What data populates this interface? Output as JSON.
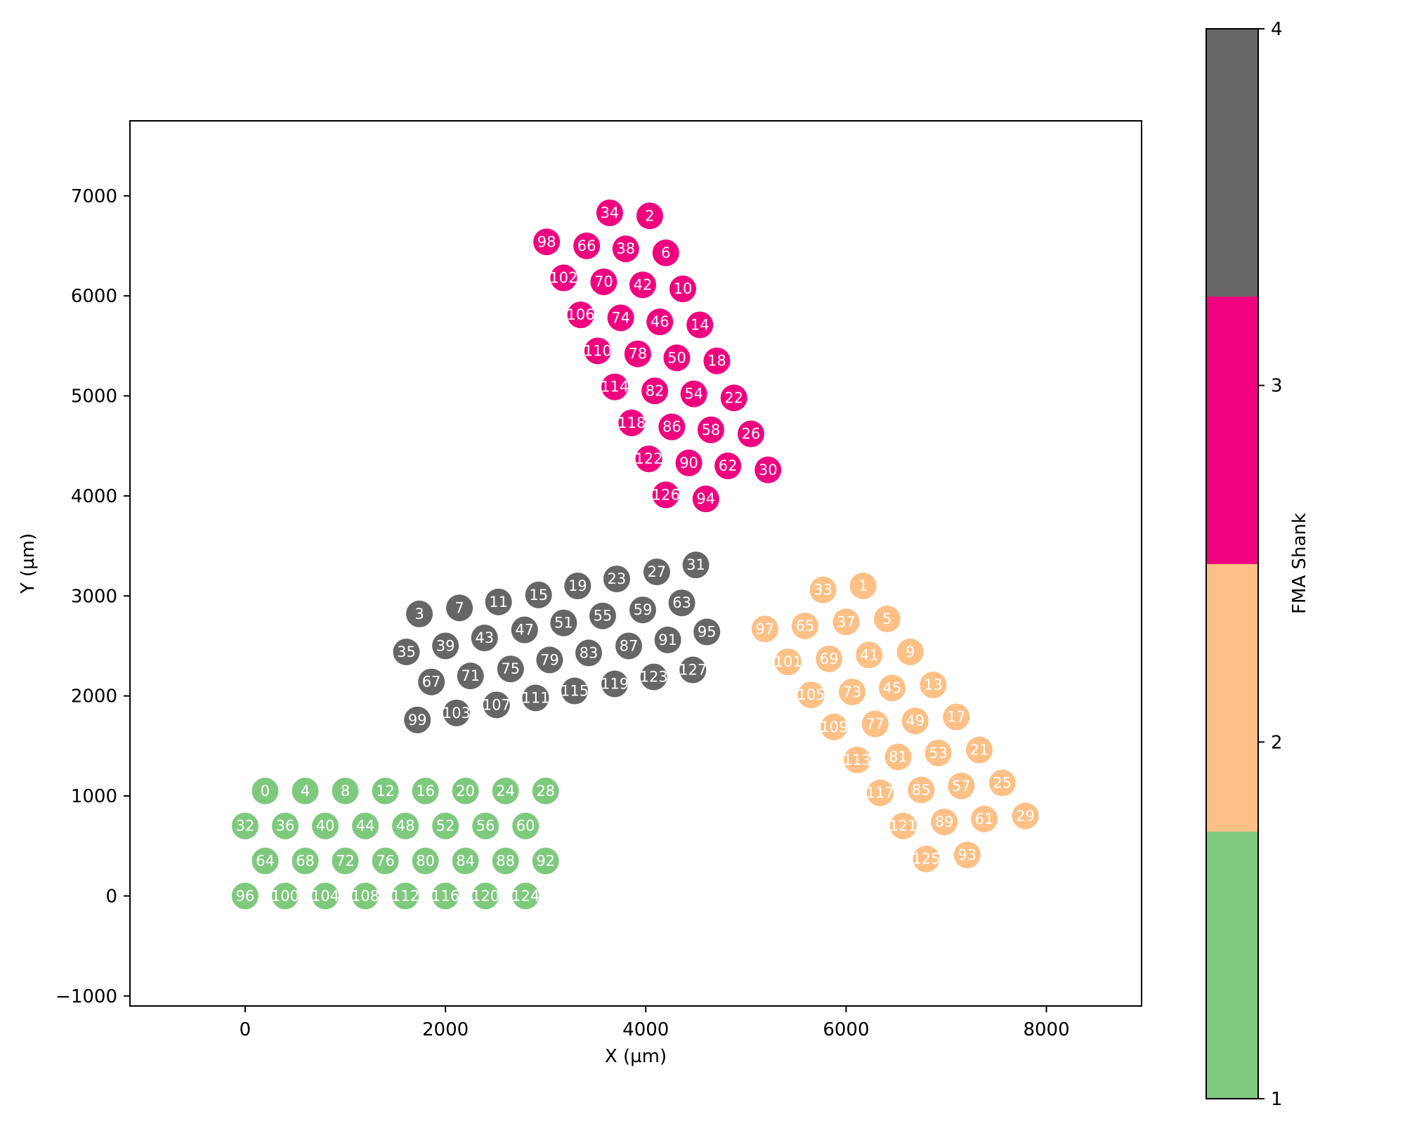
{
  "chart_data": {
    "type": "scatter",
    "xlabel": "X (µm)",
    "ylabel": "Y (µm)",
    "xlim": [
      -1150,
      8950
    ],
    "ylim": [
      -1100,
      7750
    ],
    "xticks": [
      0,
      2000,
      4000,
      6000,
      8000
    ],
    "xtick_labels": [
      "0",
      "2000",
      "4000",
      "6000",
      "8000"
    ],
    "yticks": [
      -1000,
      0,
      1000,
      2000,
      3000,
      4000,
      5000,
      6000,
      7000
    ],
    "ytick_labels": [
      "−1000",
      "0",
      "1000",
      "2000",
      "3000",
      "4000",
      "5000",
      "6000",
      "7000"
    ],
    "grid": false,
    "colorbar": {
      "label": "FMA Shank",
      "range": [
        1,
        4
      ],
      "ticks": [
        1,
        2,
        3,
        4
      ],
      "tick_labels": [
        "1",
        "2",
        "3",
        "4"
      ],
      "colors": [
        "#7fc97f",
        "#fdc086",
        "#f0027f",
        "#666666"
      ]
    },
    "series": [
      {
        "shank": 1,
        "color": "#7fc97f",
        "points": [
          {
            "id": "0",
            "x": 200,
            "y": 1050
          },
          {
            "id": "4",
            "x": 600,
            "y": 1050
          },
          {
            "id": "8",
            "x": 1000,
            "y": 1050
          },
          {
            "id": "12",
            "x": 1400,
            "y": 1050
          },
          {
            "id": "16",
            "x": 1800,
            "y": 1050
          },
          {
            "id": "20",
            "x": 2200,
            "y": 1050
          },
          {
            "id": "24",
            "x": 2600,
            "y": 1050
          },
          {
            "id": "28",
            "x": 3000,
            "y": 1050
          },
          {
            "id": "32",
            "x": 0,
            "y": 700
          },
          {
            "id": "36",
            "x": 400,
            "y": 700
          },
          {
            "id": "40",
            "x": 800,
            "y": 700
          },
          {
            "id": "44",
            "x": 1200,
            "y": 700
          },
          {
            "id": "48",
            "x": 1600,
            "y": 700
          },
          {
            "id": "52",
            "x": 2000,
            "y": 700
          },
          {
            "id": "56",
            "x": 2400,
            "y": 700
          },
          {
            "id": "60",
            "x": 2800,
            "y": 700
          },
          {
            "id": "64",
            "x": 200,
            "y": 350
          },
          {
            "id": "68",
            "x": 600,
            "y": 350
          },
          {
            "id": "72",
            "x": 1000,
            "y": 350
          },
          {
            "id": "76",
            "x": 1400,
            "y": 350
          },
          {
            "id": "80",
            "x": 1800,
            "y": 350
          },
          {
            "id": "84",
            "x": 2200,
            "y": 350
          },
          {
            "id": "88",
            "x": 2600,
            "y": 350
          },
          {
            "id": "92",
            "x": 3000,
            "y": 350
          },
          {
            "id": "96",
            "x": 0,
            "y": 0
          },
          {
            "id": "100",
            "x": 400,
            "y": 0
          },
          {
            "id": "104",
            "x": 800,
            "y": 0
          },
          {
            "id": "108",
            "x": 1200,
            "y": 0
          },
          {
            "id": "112",
            "x": 1600,
            "y": 0
          },
          {
            "id": "116",
            "x": 2000,
            "y": 0
          },
          {
            "id": "120",
            "x": 2400,
            "y": 0
          },
          {
            "id": "124",
            "x": 2800,
            "y": 0
          }
        ]
      },
      {
        "shank": 2,
        "color": "#fdc086",
        "points": [
          {
            "id": "33",
            "x": 5770,
            "y": 3060
          },
          {
            "id": "1",
            "x": 6170,
            "y": 3100
          },
          {
            "id": "97",
            "x": 5190,
            "y": 2670
          },
          {
            "id": "65",
            "x": 5590,
            "y": 2700
          },
          {
            "id": "37",
            "x": 6000,
            "y": 2740
          },
          {
            "id": "5",
            "x": 6410,
            "y": 2770
          },
          {
            "id": "101",
            "x": 5420,
            "y": 2340
          },
          {
            "id": "69",
            "x": 5830,
            "y": 2370
          },
          {
            "id": "41",
            "x": 6230,
            "y": 2410
          },
          {
            "id": "9",
            "x": 6640,
            "y": 2440
          },
          {
            "id": "105",
            "x": 5650,
            "y": 2010
          },
          {
            "id": "73",
            "x": 6060,
            "y": 2040
          },
          {
            "id": "45",
            "x": 6460,
            "y": 2080
          },
          {
            "id": "13",
            "x": 6870,
            "y": 2110
          },
          {
            "id": "109",
            "x": 5880,
            "y": 1690
          },
          {
            "id": "77",
            "x": 6290,
            "y": 1720
          },
          {
            "id": "49",
            "x": 6690,
            "y": 1750
          },
          {
            "id": "17",
            "x": 7100,
            "y": 1790
          },
          {
            "id": "113",
            "x": 6110,
            "y": 1360
          },
          {
            "id": "81",
            "x": 6520,
            "y": 1390
          },
          {
            "id": "53",
            "x": 6920,
            "y": 1430
          },
          {
            "id": "21",
            "x": 7330,
            "y": 1460
          },
          {
            "id": "117",
            "x": 6340,
            "y": 1030
          },
          {
            "id": "85",
            "x": 6750,
            "y": 1060
          },
          {
            "id": "57",
            "x": 7150,
            "y": 1100
          },
          {
            "id": "25",
            "x": 7560,
            "y": 1130
          },
          {
            "id": "121",
            "x": 6570,
            "y": 700
          },
          {
            "id": "89",
            "x": 6980,
            "y": 740
          },
          {
            "id": "61",
            "x": 7380,
            "y": 770
          },
          {
            "id": "29",
            "x": 7790,
            "y": 800
          },
          {
            "id": "125",
            "x": 6800,
            "y": 370
          },
          {
            "id": "93",
            "x": 7210,
            "y": 410
          }
        ]
      },
      {
        "shank": 3,
        "color": "#f0027f",
        "points": [
          {
            "id": "34",
            "x": 3640,
            "y": 6830
          },
          {
            "id": "2",
            "x": 4040,
            "y": 6800
          },
          {
            "id": "98",
            "x": 3010,
            "y": 6540
          },
          {
            "id": "66",
            "x": 3410,
            "y": 6500
          },
          {
            "id": "38",
            "x": 3800,
            "y": 6470
          },
          {
            "id": "6",
            "x": 4200,
            "y": 6430
          },
          {
            "id": "102",
            "x": 3180,
            "y": 6180
          },
          {
            "id": "70",
            "x": 3580,
            "y": 6140
          },
          {
            "id": "42",
            "x": 3970,
            "y": 6110
          },
          {
            "id": "10",
            "x": 4370,
            "y": 6070
          },
          {
            "id": "106",
            "x": 3350,
            "y": 5810
          },
          {
            "id": "74",
            "x": 3750,
            "y": 5780
          },
          {
            "id": "46",
            "x": 4140,
            "y": 5740
          },
          {
            "id": "14",
            "x": 4540,
            "y": 5710
          },
          {
            "id": "110",
            "x": 3520,
            "y": 5450
          },
          {
            "id": "78",
            "x": 3920,
            "y": 5420
          },
          {
            "id": "50",
            "x": 4310,
            "y": 5380
          },
          {
            "id": "18",
            "x": 4710,
            "y": 5350
          },
          {
            "id": "114",
            "x": 3690,
            "y": 5090
          },
          {
            "id": "82",
            "x": 4090,
            "y": 5050
          },
          {
            "id": "54",
            "x": 4480,
            "y": 5020
          },
          {
            "id": "22",
            "x": 4880,
            "y": 4980
          },
          {
            "id": "118",
            "x": 3860,
            "y": 4730
          },
          {
            "id": "86",
            "x": 4260,
            "y": 4690
          },
          {
            "id": "58",
            "x": 4650,
            "y": 4660
          },
          {
            "id": "26",
            "x": 5050,
            "y": 4620
          },
          {
            "id": "122",
            "x": 4030,
            "y": 4370
          },
          {
            "id": "90",
            "x": 4430,
            "y": 4330
          },
          {
            "id": "62",
            "x": 4820,
            "y": 4300
          },
          {
            "id": "30",
            "x": 5220,
            "y": 4260
          },
          {
            "id": "126",
            "x": 4200,
            "y": 4010
          },
          {
            "id": "94",
            "x": 4600,
            "y": 3970
          }
        ]
      },
      {
        "shank": 4,
        "color": "#666666",
        "points": [
          {
            "id": "3",
            "x": 1740,
            "y": 2820
          },
          {
            "id": "7",
            "x": 2140,
            "y": 2880
          },
          {
            "id": "11",
            "x": 2530,
            "y": 2940
          },
          {
            "id": "15",
            "x": 2930,
            "y": 3010
          },
          {
            "id": "19",
            "x": 3320,
            "y": 3100
          },
          {
            "id": "23",
            "x": 3710,
            "y": 3170
          },
          {
            "id": "27",
            "x": 4110,
            "y": 3240
          },
          {
            "id": "31",
            "x": 4500,
            "y": 3310
          },
          {
            "id": "35",
            "x": 1610,
            "y": 2440
          },
          {
            "id": "39",
            "x": 2000,
            "y": 2500
          },
          {
            "id": "43",
            "x": 2390,
            "y": 2580
          },
          {
            "id": "47",
            "x": 2790,
            "y": 2660
          },
          {
            "id": "51",
            "x": 3180,
            "y": 2730
          },
          {
            "id": "55",
            "x": 3570,
            "y": 2800
          },
          {
            "id": "59",
            "x": 3970,
            "y": 2860
          },
          {
            "id": "63",
            "x": 4360,
            "y": 2930
          },
          {
            "id": "67",
            "x": 1860,
            "y": 2140
          },
          {
            "id": "71",
            "x": 2250,
            "y": 2200
          },
          {
            "id": "75",
            "x": 2650,
            "y": 2270
          },
          {
            "id": "79",
            "x": 3040,
            "y": 2360
          },
          {
            "id": "83",
            "x": 3430,
            "y": 2430
          },
          {
            "id": "87",
            "x": 3830,
            "y": 2500
          },
          {
            "id": "91",
            "x": 4220,
            "y": 2560
          },
          {
            "id": "95",
            "x": 4610,
            "y": 2640
          },
          {
            "id": "99",
            "x": 1720,
            "y": 1760
          },
          {
            "id": "103",
            "x": 2110,
            "y": 1830
          },
          {
            "id": "107",
            "x": 2510,
            "y": 1910
          },
          {
            "id": "111",
            "x": 2900,
            "y": 1980
          },
          {
            "id": "115",
            "x": 3290,
            "y": 2050
          },
          {
            "id": "119",
            "x": 3690,
            "y": 2120
          },
          {
            "id": "123",
            "x": 4080,
            "y": 2190
          },
          {
            "id": "127",
            "x": 4470,
            "y": 2260
          }
        ]
      }
    ]
  }
}
